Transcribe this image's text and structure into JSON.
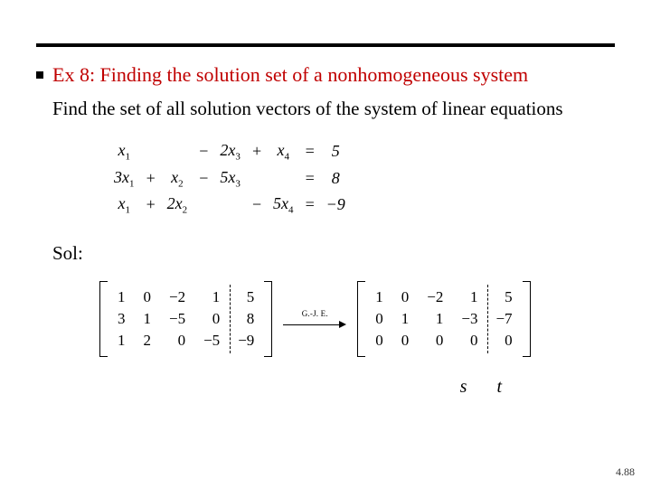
{
  "title": "Ex 8: Finding the solution set of a nonhomogeneous system",
  "subtitle": "Find the set of all solution vectors of the system of linear equations",
  "title_color": "#c00000",
  "equations": {
    "rows": [
      [
        {
          "v": "x",
          "s": "1"
        },
        "",
        "",
        "−",
        {
          "v": "2x",
          "s": "3"
        },
        "+",
        {
          "v": "x",
          "s": "4"
        },
        "=",
        "5"
      ],
      [
        {
          "v": "3x",
          "s": "1"
        },
        "+",
        {
          "v": "x",
          "s": "2"
        },
        "−",
        {
          "v": "5x",
          "s": "3"
        },
        "",
        "",
        "=",
        "8"
      ],
      [
        {
          "v": "x",
          "s": "1"
        },
        "+",
        {
          "v": "2x",
          "s": "2"
        },
        "",
        "",
        "−",
        {
          "v": "5x",
          "s": "4"
        },
        "=",
        "−9"
      ]
    ]
  },
  "sol_label": "Sol:",
  "matrixA": {
    "rows": [
      [
        "1",
        "0",
        "−2",
        "1",
        "5"
      ],
      [
        "3",
        "1",
        "−5",
        "0",
        "8"
      ],
      [
        "1",
        "2",
        "0",
        "−5",
        "−9"
      ]
    ]
  },
  "matrixB": {
    "rows": [
      [
        "1",
        "0",
        "−2",
        "1",
        "5"
      ],
      [
        "0",
        "1",
        "1",
        "−3",
        "−7"
      ],
      [
        "0",
        "0",
        "0",
        "0",
        "0"
      ]
    ]
  },
  "arrow_label": "G.-J. E.",
  "vars": {
    "s": "s",
    "t": "t"
  },
  "page": "4.88"
}
